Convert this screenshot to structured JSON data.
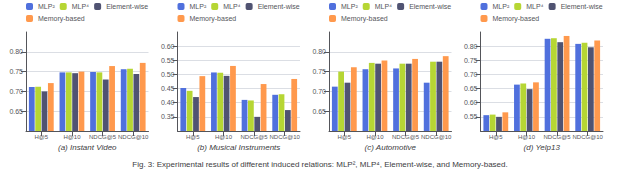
{
  "title": "Fig. 3: Experimental results of different induced relations: MLP², MLP⁴, Element-wise, and Memory-based.",
  "chart_data": [
    {
      "type": "bar",
      "title": "(a) Instant Video",
      "categories": [
        "H@5",
        "H@10",
        "NDCG@5",
        "NDCG@10"
      ],
      "series": [
        {
          "name": "MLP²",
          "values": [
            0.711,
            0.748,
            0.749,
            0.756
          ]
        },
        {
          "name": "MLP⁴",
          "values": [
            0.712,
            0.748,
            0.748,
            0.757
          ]
        },
        {
          "name": "Element-wise",
          "values": [
            0.7,
            0.746,
            0.73,
            0.744
          ]
        },
        {
          "name": "Memory-based",
          "values": [
            0.721,
            0.75,
            0.764,
            0.772
          ]
        }
      ],
      "ylim": [
        0.6,
        0.85
      ],
      "yticks": [
        0.65,
        {
          "value": 0.7,
          "label": "0.70"
        },
        0.75,
        {
          "value": 0.8,
          "label": "0.80"
        }
      ],
      "grid": true,
      "legend": "upper left"
    },
    {
      "type": "bar",
      "title": "(b) Musical Instruments",
      "categories": [
        "H@5",
        "H@10",
        "NDCG@5",
        "NDCG@10"
      ],
      "series": [
        {
          "name": "MLP²",
          "values": [
            0.452,
            0.507,
            0.41,
            0.428
          ]
        },
        {
          "name": "MLP⁴",
          "values": [
            0.442,
            0.506,
            0.408,
            0.43
          ]
        },
        {
          "name": "Element-wise",
          "values": [
            0.42,
            0.495,
            0.35,
            0.374
          ]
        },
        {
          "name": "Memory-based",
          "values": [
            0.494,
            0.53,
            0.466,
            0.484
          ]
        }
      ],
      "ylim": [
        0.3,
        0.65
      ],
      "yticks": [
        0.35,
        {
          "value": 0.4,
          "label": "0.40"
        },
        0.45,
        {
          "value": 0.5,
          "label": "0.50"
        },
        0.55,
        {
          "value": 0.6,
          "label": "0.60"
        }
      ],
      "grid": true,
      "legend": "upper left"
    },
    {
      "type": "bar",
      "title": "(c) Automotive",
      "categories": [
        "H@5",
        "H@10",
        "NDCG@5",
        "NDCG@10"
      ],
      "series": [
        {
          "name": "MLP²",
          "values": [
            0.712,
            0.756,
            0.758,
            0.722
          ]
        },
        {
          "name": "MLP⁴",
          "values": [
            0.75,
            0.772,
            0.77,
            0.775
          ]
        },
        {
          "name": "Element-wise",
          "values": [
            0.722,
            0.77,
            0.77,
            0.775
          ]
        },
        {
          "name": "Memory-based",
          "values": [
            0.761,
            0.778,
            0.782,
            0.789
          ]
        }
      ],
      "ylim": [
        0.6,
        0.85
      ],
      "yticks": [
        0.65,
        {
          "value": 0.7,
          "label": "0.70"
        },
        0.75,
        {
          "value": 0.8,
          "label": "0.80"
        }
      ],
      "grid": true,
      "legend": "upper left"
    },
    {
      "type": "bar",
      "title": "(d) Yelp13",
      "categories": [
        "H@5",
        "H@10",
        "NDCG@5",
        "NDCG@10"
      ],
      "series": [
        {
          "name": "MLP²",
          "values": [
            0.556,
            0.664,
            0.826,
            0.808
          ]
        },
        {
          "name": "MLP⁴",
          "values": [
            0.558,
            0.668,
            0.828,
            0.812
          ]
        },
        {
          "name": "Element-wise",
          "values": [
            0.55,
            0.648,
            0.814,
            0.796
          ]
        },
        {
          "name": "Memory-based",
          "values": [
            0.566,
            0.672,
            0.836,
            0.82
          ]
        }
      ],
      "ylim": [
        0.5,
        0.85
      ],
      "yticks": [
        0.55,
        {
          "value": 0.6,
          "label": "0.60"
        },
        0.65,
        {
          "value": 0.7,
          "label": "0.70"
        },
        0.75,
        {
          "value": 0.8,
          "label": "0.80"
        }
      ],
      "grid": true,
      "legend": "upper left"
    }
  ]
}
